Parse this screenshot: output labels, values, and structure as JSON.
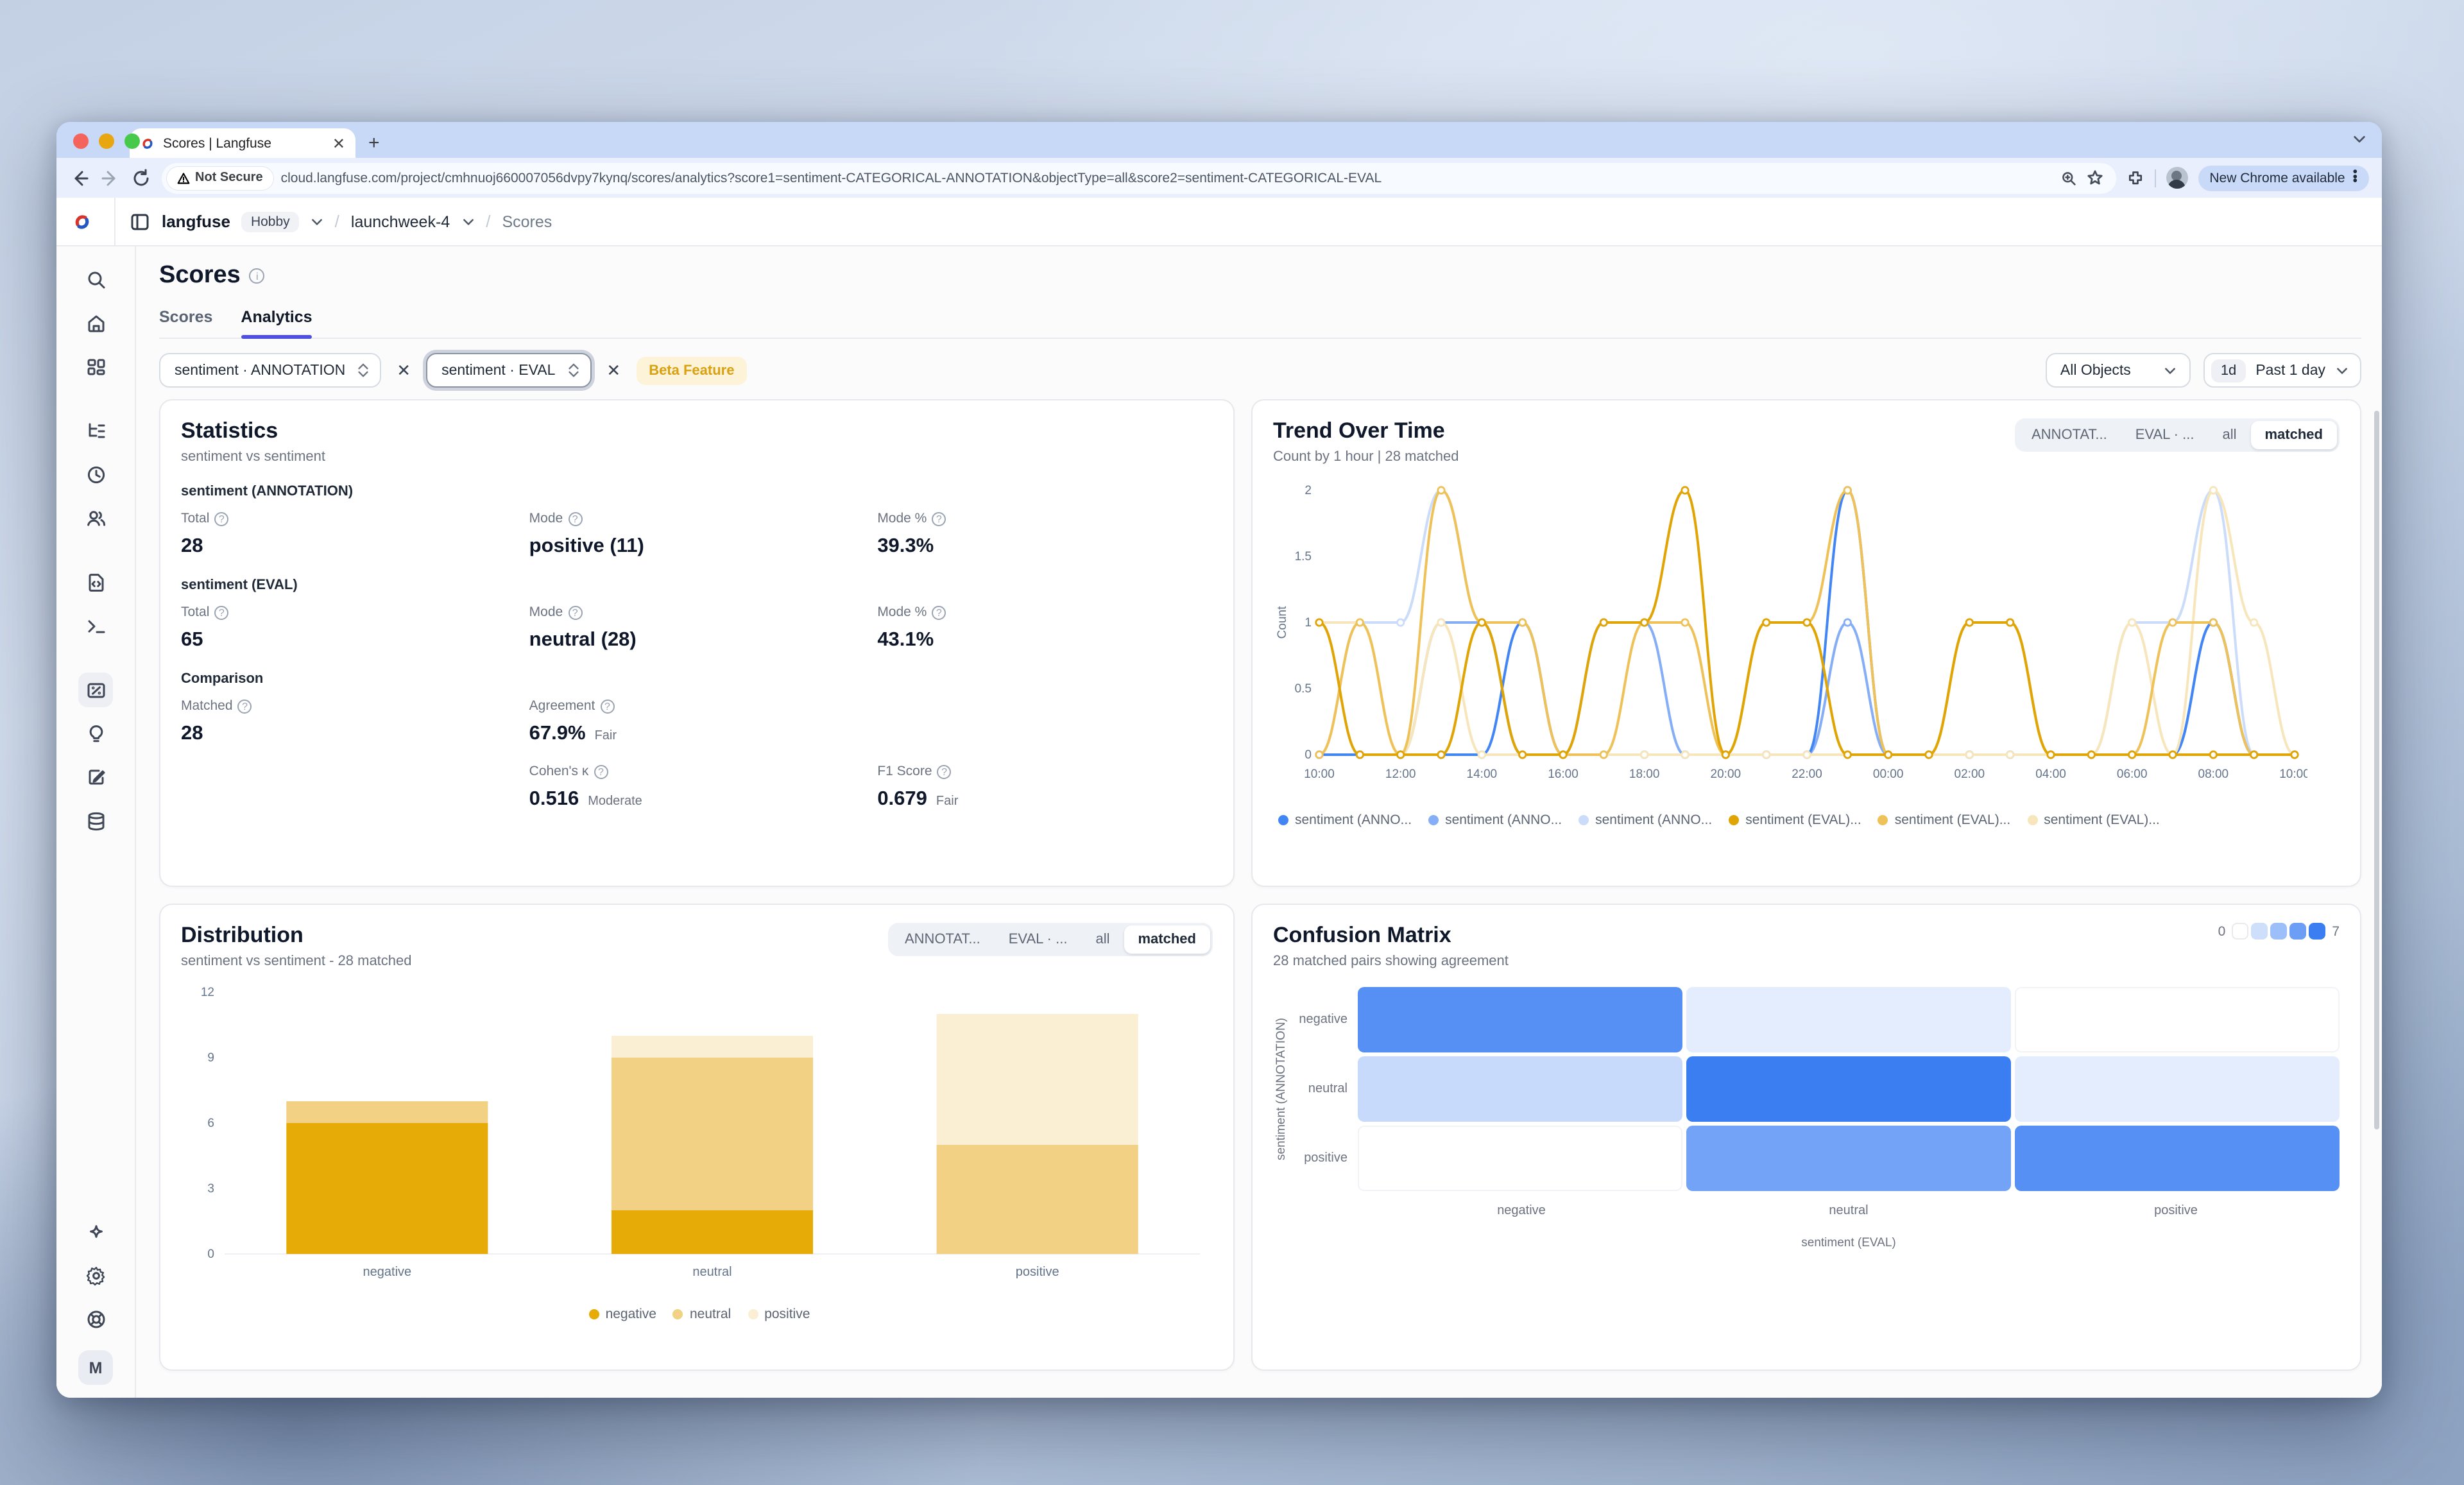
{
  "browser": {
    "tab_title": "Scores | Langfuse",
    "not_secure_label": "Not Secure",
    "url": "cloud.langfuse.com/project/cmhnuoj660007056dvpy7kynq/scores/analytics?score1=sentiment-CATEGORICAL-ANNOTATION&objectType=all&score2=sentiment-CATEGORICAL-EVAL",
    "update_pill": "New Chrome available"
  },
  "header": {
    "brand": "langfuse",
    "org_badge": "Hobby",
    "project": "launchweek-4",
    "page": "Scores",
    "crumb_sep": "/"
  },
  "sidebar": {
    "icons": [
      "search",
      "home",
      "dashboards",
      "tracing",
      "sessions",
      "users",
      "prompts",
      "playground",
      "scores",
      "evaluation",
      "annotation-queues",
      "datasets",
      "ask-ai",
      "settings",
      "support"
    ],
    "avatar_letter": "M"
  },
  "page": {
    "title": "Scores",
    "tabs": [
      {
        "label": "Scores"
      },
      {
        "label": "Analytics"
      }
    ],
    "active_tab": "Analytics"
  },
  "filters": {
    "score1": "sentiment · ANNOTATION",
    "score2": "sentiment · EVAL",
    "beta_badge": "Beta Feature",
    "object_filter": "All Objects",
    "range_short": "1d",
    "range_label": "Past 1 day"
  },
  "statistics": {
    "title": "Statistics",
    "subtitle": "sentiment vs sentiment",
    "annotation": {
      "heading": "sentiment (ANNOTATION)",
      "total_label": "Total",
      "total": "28",
      "mode_label": "Mode",
      "mode": "positive (11)",
      "mode_pct_label": "Mode %",
      "mode_pct": "39.3%"
    },
    "eval": {
      "heading": "sentiment (EVAL)",
      "total_label": "Total",
      "total": "65",
      "mode_label": "Mode",
      "mode": "neutral (28)",
      "mode_pct_label": "Mode %",
      "mode_pct": "43.1%"
    },
    "comparison": {
      "heading": "Comparison",
      "matched_label": "Matched",
      "matched": "28",
      "agreement_label": "Agreement",
      "agreement": "67.9%",
      "agreement_qualifier": "Fair",
      "kappa_label": "Cohen's κ",
      "kappa": "0.516",
      "kappa_qualifier": "Moderate",
      "f1_label": "F1 Score",
      "f1": "0.679",
      "f1_qualifier": "Fair"
    }
  },
  "trend": {
    "title": "Trend Over Time",
    "subtitle": "Count by 1 hour | 28 matched",
    "toggle": [
      "ANNOTAT...",
      "EVAL · ...",
      "all",
      "matched"
    ],
    "active_toggle": "matched"
  },
  "distribution": {
    "title": "Distribution",
    "subtitle": "sentiment vs sentiment - 28 matched",
    "toggle": [
      "ANNOTAT...",
      "EVAL · ...",
      "all",
      "matched"
    ],
    "active_toggle": "matched"
  },
  "confusion": {
    "title": "Confusion Matrix",
    "subtitle": "28 matched pairs showing agreement",
    "scale_min": "0",
    "scale_max": "7"
  },
  "chart_data": [
    {
      "type": "line",
      "title": "Trend Over Time",
      "ylabel": "Count",
      "ylim": [
        0,
        2
      ],
      "yticks": [
        0,
        0.5,
        1,
        1.5,
        2
      ],
      "x": [
        "10:00",
        "11:00",
        "12:00",
        "13:00",
        "14:00",
        "15:00",
        "16:00",
        "17:00",
        "18:00",
        "19:00",
        "20:00",
        "21:00",
        "22:00",
        "23:00",
        "00:00",
        "01:00",
        "02:00",
        "03:00",
        "04:00",
        "05:00",
        "06:00",
        "07:00",
        "08:00",
        "09:00",
        "10:00"
      ],
      "xtick_every": 2,
      "legend_position": "bottom",
      "grid": false,
      "series": [
        {
          "name": "sentiment (ANNO...",
          "color": "#4285f4",
          "values": [
            0,
            0,
            0,
            0,
            0,
            1,
            0,
            0,
            0,
            0,
            0,
            0,
            0,
            2,
            0,
            0,
            0,
            0,
            0,
            0,
            0,
            0,
            1,
            0,
            0
          ]
        },
        {
          "name": "sentiment (ANNO...",
          "color": "#85aef6",
          "values": [
            0,
            0,
            0,
            1,
            1,
            0,
            0,
            1,
            1,
            0,
            0,
            0,
            0,
            1,
            0,
            0,
            0,
            0,
            0,
            0,
            0,
            0,
            1,
            0,
            0
          ]
        },
        {
          "name": "sentiment (ANNO...",
          "color": "#cbdcfa",
          "values": [
            0,
            1,
            1,
            2,
            1,
            0,
            0,
            0,
            0,
            0,
            0,
            0,
            0,
            0,
            0,
            0,
            0,
            0,
            0,
            0,
            1,
            1,
            2,
            0,
            0
          ]
        },
        {
          "name": "sentiment (EVAL)...",
          "color": "#e0a404",
          "values": [
            1,
            0,
            0,
            0,
            1,
            0,
            0,
            1,
            1,
            2,
            0,
            1,
            1,
            0,
            0,
            0,
            1,
            1,
            0,
            0,
            0,
            0,
            0,
            0,
            0
          ]
        },
        {
          "name": "sentiment (EVAL)...",
          "color": "#eec259",
          "values": [
            0,
            1,
            0,
            2,
            1,
            1,
            0,
            0,
            1,
            1,
            0,
            1,
            1,
            2,
            0,
            0,
            1,
            1,
            0,
            0,
            0,
            1,
            1,
            0,
            0
          ]
        },
        {
          "name": "sentiment (EVAL)...",
          "color": "#f7e6bb",
          "values": [
            1,
            1,
            0,
            1,
            0,
            0,
            0,
            0,
            0,
            0,
            0,
            0,
            0,
            0,
            0,
            0,
            0,
            0,
            0,
            0,
            1,
            0,
            2,
            1,
            0
          ]
        }
      ]
    },
    {
      "type": "bar",
      "title": "Distribution",
      "stacked": true,
      "categories": [
        "negative",
        "neutral",
        "positive"
      ],
      "ylim": [
        0,
        12
      ],
      "yticks": [
        0,
        3,
        6,
        9,
        12
      ],
      "legend_position": "bottom",
      "series": [
        {
          "name": "negative",
          "color": "#e6ab06",
          "values": [
            6,
            2,
            0
          ]
        },
        {
          "name": "neutral",
          "color": "#f2d084",
          "values": [
            1,
            7,
            5
          ]
        },
        {
          "name": "positive",
          "color": "#faeed3",
          "values": [
            0,
            1,
            6
          ]
        }
      ]
    },
    {
      "type": "heatmap",
      "title": "Confusion Matrix",
      "xlabel": "sentiment (EVAL)",
      "ylabel": "sentiment (ANNOTATION)",
      "rows": [
        "negative",
        "neutral",
        "positive"
      ],
      "cols": [
        "negative",
        "neutral",
        "positive"
      ],
      "values": [
        [
          6,
          1,
          0
        ],
        [
          2,
          7,
          1
        ],
        [
          0,
          5,
          6
        ]
      ],
      "vmin": 0,
      "vmax": 7,
      "max_color": "#3b7ef2"
    }
  ]
}
